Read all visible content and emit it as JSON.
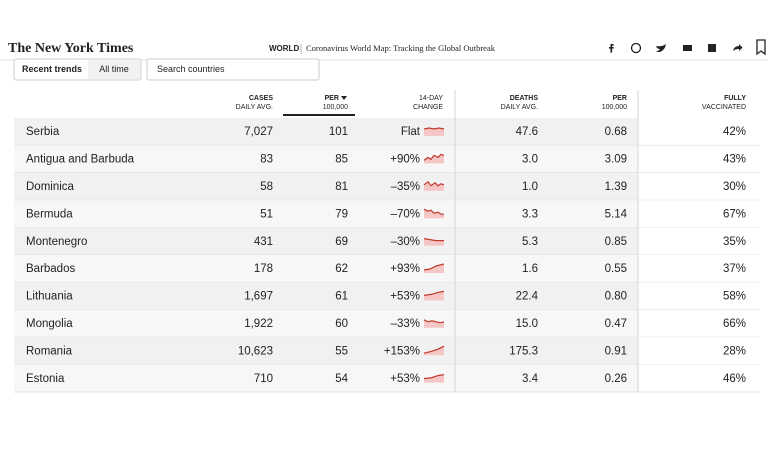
{
  "header": {
    "logo": "The New York Times",
    "section": "WORLD",
    "title": "Coronavirus World Map: Tracking the Global Outbreak"
  },
  "controls": {
    "tabs": [
      "Recent trends",
      "All time"
    ],
    "search_placeholder": "Search countries"
  },
  "table": {
    "columns": [
      {
        "line1": "CASES",
        "line2": "DAILY AVG."
      },
      {
        "line1": "PER",
        "line2": "100,000"
      },
      {
        "line1": "14-DAY",
        "line2": "CHANGE"
      },
      {
        "line1": "DEATHS",
        "line2": "DAILY AVG."
      },
      {
        "line1": "PER",
        "line2": "100,000"
      },
      {
        "line1": "FULLY",
        "line2": "VACCINATED"
      }
    ],
    "rows": [
      [
        "Serbia",
        "7,027",
        "101",
        "Flat",
        "47.6",
        "0.68",
        "42%"
      ],
      [
        "Antigua and Barbuda",
        "83",
        "85",
        "+90%",
        "3.0",
        "3.09",
        "43%"
      ],
      [
        "Dominica",
        "58",
        "81",
        "–35%",
        "1.0",
        "1.39",
        "30%"
      ],
      [
        "Bermuda",
        "51",
        "79",
        "–70%",
        "3.3",
        "5.14",
        "67%"
      ],
      [
        "Montenegro",
        "431",
        "69",
        "–30%",
        "5.3",
        "0.85",
        "35%"
      ],
      [
        "Barbados",
        "178",
        "62",
        "+93%",
        "1.6",
        "0.55",
        "37%"
      ],
      [
        "Lithuania",
        "1,697",
        "61",
        "+53%",
        "22.4",
        "0.80",
        "58%"
      ],
      [
        "Mongolia",
        "1,922",
        "60",
        "–33%",
        "15.0",
        "0.47",
        "66%"
      ],
      [
        "Romania",
        "10,623",
        "55",
        "+153%",
        "175.3",
        "0.91",
        "28%"
      ],
      [
        "Estonia",
        "710",
        "54",
        "+53%",
        "3.4",
        "0.26",
        "46%"
      ]
    ],
    "vaccinated_colors": [
      "#a8d3bf",
      "#a8d3bf",
      "#a8d3bf",
      "#2f7d5a",
      "#a8d3bf",
      "#a8d3bf",
      "#2f7d5a",
      "#2f7d5a",
      "#a8d3bf",
      "#a8d3bf"
    ]
  }
}
